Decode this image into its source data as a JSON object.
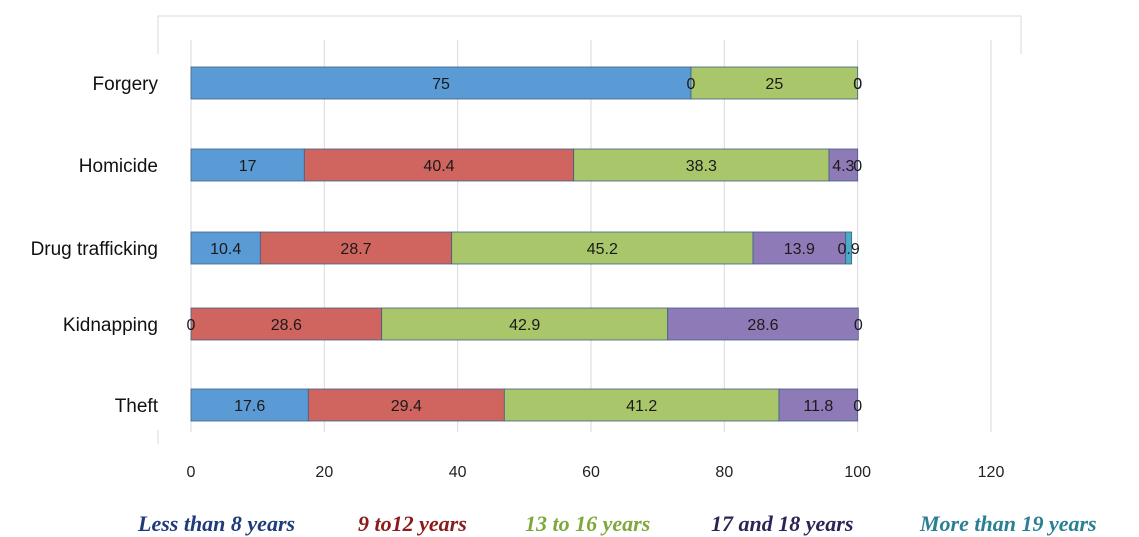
{
  "chart_data": {
    "type": "bar",
    "orientation": "horizontal",
    "stacked": true,
    "categories": [
      "Forgery",
      "Homicide",
      "Drug trafficking",
      "Kidnapping",
      "Theft"
    ],
    "series": [
      {
        "name": "Less than 8 years",
        "color": "#5b9bd5",
        "values": [
          75,
          17,
          10.4,
          0,
          17.6
        ],
        "labels": [
          "75",
          "17",
          "10.4",
          "0",
          "17.6"
        ]
      },
      {
        "name": "9 to12 years",
        "color": "#d0655f",
        "values": [
          0,
          40.4,
          28.7,
          28.6,
          29.4
        ],
        "labels": [
          "0",
          "40.4",
          "28.7",
          "28.6",
          "29.4"
        ]
      },
      {
        "name": "13 to 16 years",
        "color": "#a9c66b",
        "values": [
          25,
          38.3,
          45.2,
          42.9,
          41.2
        ],
        "labels": [
          "25",
          "38.3",
          "45.2",
          "42.9",
          "41.2"
        ]
      },
      {
        "name": "17 and 18 years",
        "color": "#8f7ab8",
        "values": [
          0,
          4.3,
          13.9,
          28.6,
          11.8
        ],
        "labels": [
          "0",
          "4.3",
          "13.9",
          "28.6",
          "11.8"
        ]
      },
      {
        "name": "More than 19 years",
        "color": "#4bacc6",
        "values": [
          0,
          0,
          0.9,
          0,
          0
        ],
        "labels": [
          "0",
          "0",
          "0.9",
          "0",
          "0"
        ]
      }
    ],
    "xlim": [
      0,
      120
    ],
    "xticks": [
      "0",
      "20",
      "40",
      "60",
      "80",
      "100",
      "120"
    ],
    "grid": true,
    "legend_position": "bottom"
  },
  "legend": {
    "items": [
      {
        "label": "Less than 8 years",
        "color": "#1f3b7a"
      },
      {
        "label": "9 to12 years",
        "color": "#8b1a1a"
      },
      {
        "label": "13 to 16 years",
        "color": "#7fa83b"
      },
      {
        "label": "17 and 18 years",
        "color": "#2b2456"
      },
      {
        "label": "More than 19 years",
        "color": "#2a7f95"
      }
    ]
  }
}
